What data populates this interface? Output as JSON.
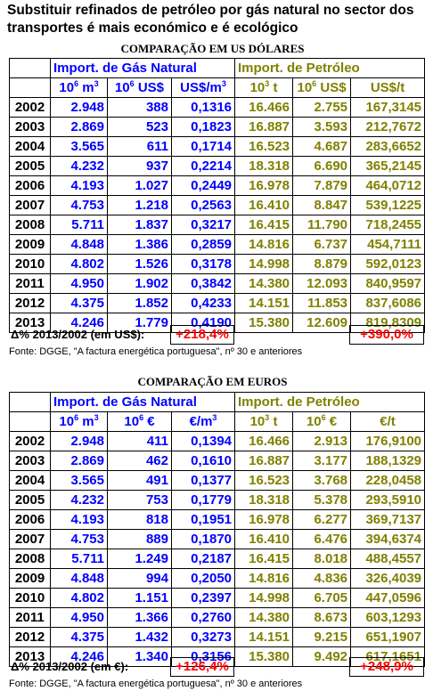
{
  "title": "Substituir refinados de petróleo por gás natural no sector dos transportes é mais económico e é ecológico",
  "usd": {
    "caption": "COMPARAÇÃO EM US DÓLARES",
    "group_gas": "Import. de Gás Natural",
    "group_oil": "Import. de Petróleo",
    "h": {
      "gas_vol_base": "10",
      "gas_vol_exp": "6",
      "gas_vol_unit": " m",
      "gas_vol_unit_exp": "3",
      "gas_val_base": "10",
      "gas_val_exp": "6",
      "gas_val_unit": " US$",
      "gas_price_base": "US$/m",
      "gas_price_exp": "3",
      "oil_vol_base": "10",
      "oil_vol_exp": "3",
      "oil_vol_unit": " t",
      "oil_val_base": "10",
      "oil_val_exp": "6",
      "oil_val_unit": " US$",
      "oil_price": "US$/t"
    },
    "rows": [
      [
        "2002",
        "2.948",
        "388",
        "0,1316",
        "16.466",
        "2.755",
        "167,3145"
      ],
      [
        "2003",
        "2.869",
        "523",
        "0,1823",
        "16.887",
        "3.593",
        "212,7672"
      ],
      [
        "2004",
        "3.565",
        "611",
        "0,1714",
        "16.523",
        "4.687",
        "283,6652"
      ],
      [
        "2005",
        "4.232",
        "937",
        "0,2214",
        "18.318",
        "6.690",
        "365,2145"
      ],
      [
        "2006",
        "4.193",
        "1.027",
        "0,2449",
        "16.978",
        "7.879",
        "464,0712"
      ],
      [
        "2007",
        "4.753",
        "1.218",
        "0,2563",
        "16.410",
        "8.847",
        "539,1225"
      ],
      [
        "2008",
        "5.711",
        "1.837",
        "0,3217",
        "16.415",
        "11.790",
        "718,2455"
      ],
      [
        "2009",
        "4.848",
        "1.386",
        "0,2859",
        "14.816",
        "6.737",
        "454,7111"
      ],
      [
        "2010",
        "4.802",
        "1.526",
        "0,3178",
        "14.998",
        "8.879",
        "592,0123"
      ],
      [
        "2011",
        "4.950",
        "1.902",
        "0,3842",
        "14.380",
        "12.093",
        "840,9597"
      ],
      [
        "2012",
        "4.375",
        "1.852",
        "0,4233",
        "14.151",
        "11.853",
        "837,6086"
      ],
      [
        "2013",
        "4.246",
        "1.779",
        "0,4190",
        "15.380",
        "12.609",
        "819,8309"
      ]
    ],
    "delta_label": "Δ% 2013/2002 (em US$):",
    "delta_gas": "+218,4%",
    "delta_oil": "+390,0%",
    "source": "Fonte:  DGGE, \"A factura energética portuguesa\", nº 30 e anteriores"
  },
  "eur": {
    "caption": "COMPARAÇÃO EM EUROS",
    "group_gas": "Import. de Gás Natural",
    "group_oil": "Import. de Petróleo",
    "h": {
      "gas_vol_base": "10",
      "gas_vol_exp": "6",
      "gas_vol_unit": " m",
      "gas_vol_unit_exp": "3",
      "gas_val_base": "10",
      "gas_val_exp": "6",
      "gas_val_unit": " €",
      "gas_price_base": "€/m",
      "gas_price_exp": "3",
      "oil_vol_base": "10",
      "oil_vol_exp": "3",
      "oil_vol_unit": " t",
      "oil_val_base": "10",
      "oil_val_exp": "6",
      "oil_val_unit": " €",
      "oil_price": "€/t"
    },
    "rows": [
      [
        "2002",
        "2.948",
        "411",
        "0,1394",
        "16.466",
        "2.913",
        "176,9100"
      ],
      [
        "2003",
        "2.869",
        "462",
        "0,1610",
        "16.887",
        "3.177",
        "188,1329"
      ],
      [
        "2004",
        "3.565",
        "491",
        "0,1377",
        "16.523",
        "3.768",
        "228,0458"
      ],
      [
        "2005",
        "4.232",
        "753",
        "0,1779",
        "18.318",
        "5.378",
        "293,5910"
      ],
      [
        "2006",
        "4.193",
        "818",
        "0,1951",
        "16.978",
        "6.277",
        "369,7137"
      ],
      [
        "2007",
        "4.753",
        "889",
        "0,1870",
        "16.410",
        "6.476",
        "394,6374"
      ],
      [
        "2008",
        "5.711",
        "1.249",
        "0,2187",
        "16.415",
        "8.018",
        "488,4557"
      ],
      [
        "2009",
        "4.848",
        "994",
        "0,2050",
        "14.816",
        "4.836",
        "326,4039"
      ],
      [
        "2010",
        "4.802",
        "1.151",
        "0,2397",
        "14.998",
        "6.705",
        "447,0596"
      ],
      [
        "2011",
        "4.950",
        "1.366",
        "0,2760",
        "14.380",
        "8.673",
        "603,1293"
      ],
      [
        "2012",
        "4.375",
        "1.432",
        "0,3273",
        "14.151",
        "9.215",
        "651,1907"
      ],
      [
        "2013",
        "4.246",
        "1.340",
        "0,3156",
        "15.380",
        "9.492",
        "617,1651"
      ]
    ],
    "delta_label": "Δ% 2013/2002 (em €):",
    "delta_gas": "+126,4%",
    "delta_oil": "+248,9%",
    "source": "Fonte:  DGGE, \"A factura energética portuguesa\", nº 30 e anteriores"
  }
}
